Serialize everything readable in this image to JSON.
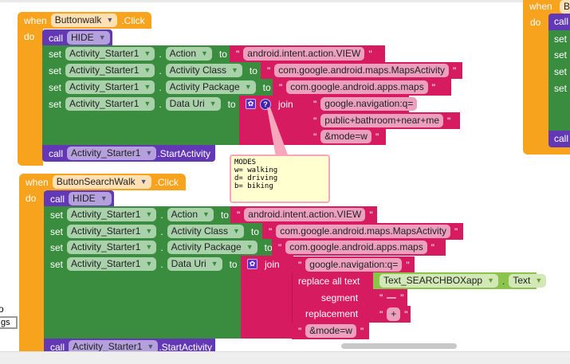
{
  "colors": {
    "event": "#f8a31e",
    "procedure": "#6238b4",
    "set": "#3a8c3f",
    "text": "#d71b60",
    "component": "#8cc34b"
  },
  "ev1": {
    "when": "when",
    "component": "Buttonwalk",
    "event": ".Click",
    "do": "do",
    "call": "call",
    "hide": "HIDE",
    "sets": [
      {
        "set": "set",
        "component": "Activity_Starter1",
        "dot": ".",
        "property": "Action",
        "to": "to",
        "value": "android.intent.action.VIEW"
      },
      {
        "set": "set",
        "component": "Activity_Starter1",
        "dot": ".",
        "property": "Activity Class",
        "to": "to",
        "value": "com.google.android.maps.MapsActivity"
      },
      {
        "set": "set",
        "component": "Activity_Starter1",
        "dot": ".",
        "property": "Activity Package",
        "to": "to",
        "value": "com.google.android.apps.maps"
      },
      {
        "set": "set",
        "component": "Activity_Starter1",
        "dot": ".",
        "property": "Data Uri",
        "to": "to"
      }
    ],
    "join": "join",
    "parts": [
      "google.navigation:q=",
      "public+bathroom+near+me",
      "&mode=w"
    ],
    "start_component": "Activity_Starter1",
    "start_method": ".StartActivity",
    "comment": [
      "MODES",
      "w= walking",
      "d= driving",
      "b= biking"
    ]
  },
  "ev2": {
    "when": "when",
    "component": "ButtonSearchWalk",
    "event": ".Click",
    "do": "do",
    "call": "call",
    "hide": "HIDE",
    "sets": [
      {
        "set": "set",
        "component": "Activity_Starter1",
        "dot": ".",
        "property": "Action",
        "to": "to",
        "value": "android.intent.action.VIEW"
      },
      {
        "set": "set",
        "component": "Activity_Starter1",
        "dot": ".",
        "property": "Activity Class",
        "to": "to",
        "value": "com.google.android.maps.MapsActivity"
      },
      {
        "set": "set",
        "component": "Activity_Starter1",
        "dot": ".",
        "property": "Activity Package",
        "to": "to",
        "value": "com.google.android.apps.maps"
      },
      {
        "set": "set",
        "component": "Activity_Starter1",
        "dot": ".",
        "property": "Data Uri",
        "to": "to"
      }
    ],
    "join": "join",
    "part1": "google.navigation:q=",
    "replace": "replace all text",
    "textbox": "Text_SEARCHBOXapp",
    "textprop": "Text",
    "segment": "segment",
    "segment_value": " ",
    "replacement": "replacement",
    "replacement_value": "+",
    "part3": "&mode=w",
    "start_component": "Activity_Starter1",
    "start_method": ".StartActivity"
  },
  "ev3": {
    "when": "when",
    "component": "Bu",
    "do": "do",
    "call": "call",
    "set": "set"
  },
  "left": {
    "label": "o",
    "input": "gs"
  },
  "quote": "\""
}
